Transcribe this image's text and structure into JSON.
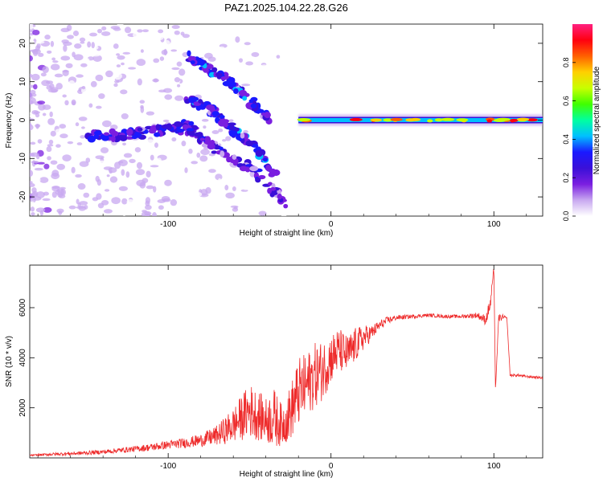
{
  "title": "PAZ1.2025.104.22.28.G26",
  "chart_data": [
    {
      "type": "heatmap",
      "xlabel": "Height of straight line (km)",
      "ylabel": "Frequency (Hz)",
      "xlim": [
        -185,
        130
      ],
      "ylim": [
        -25,
        25
      ],
      "xticks": [
        -100,
        0,
        100
      ],
      "yticks": [
        -20,
        -10,
        0,
        10,
        20
      ],
      "colorbar": {
        "label": "Normalized spectral amplitude",
        "range": [
          0,
          1
        ],
        "ticks": [
          "0.0",
          "0.2",
          "0.4",
          "0.6",
          "0.8"
        ],
        "tick_values": [
          0,
          0.2,
          0.4,
          0.6,
          0.8
        ],
        "colormap": [
          "#ffffff",
          "#c8a8f0",
          "#7a1ee0",
          "#3a10d8",
          "#1a1aff",
          "#00c0ff",
          "#00ffa0",
          "#40ff00",
          "#c8ff00",
          "#ffd000",
          "#ff6000",
          "#ff0010",
          "#ff2080"
        ]
      },
      "features": [
        {
          "name": "main-line",
          "x_start": -20,
          "x_end": 130,
          "freq": 0,
          "amplitude": 0.45
        },
        {
          "name": "upper-branch",
          "points": [
            [
              -88,
              17
            ],
            [
              -75,
              13
            ],
            [
              -62,
              10
            ],
            [
              -50,
              5
            ],
            [
              -38,
              0
            ]
          ],
          "amplitude": 0.3
        },
        {
          "name": "mid-branch",
          "points": [
            [
              -88,
              6
            ],
            [
              -75,
              3
            ],
            [
              -62,
              -2
            ],
            [
              -48,
              -6
            ],
            [
              -35,
              -14
            ]
          ],
          "amplitude": 0.3
        },
        {
          "name": "lower-branch",
          "points": [
            [
              -90,
              -1
            ],
            [
              -78,
              -5
            ],
            [
              -65,
              -9
            ],
            [
              -52,
              -12
            ],
            [
              -40,
              -16
            ],
            [
              -28,
              -22
            ]
          ],
          "amplitude": 0.25
        },
        {
          "name": "central-band",
          "points": [
            [
              -150,
              -4
            ],
            [
              -130,
              -4
            ],
            [
              -110,
              -3
            ],
            [
              -95,
              -2
            ],
            [
              -80,
              -3
            ]
          ],
          "amplitude": 0.28
        }
      ]
    },
    {
      "type": "line",
      "xlabel": "Height of straight line (km)",
      "ylabel": "SNR (10 * v/v)",
      "xlim": [
        -185,
        130
      ],
      "ylim": [
        0,
        7700
      ],
      "xticks": [
        -100,
        0,
        100
      ],
      "yticks": [
        2000,
        4000,
        6000
      ],
      "color": "#ee2a2a",
      "series": [
        {
          "x": [
            -185,
            -170,
            -160,
            -150,
            -140,
            -130,
            -120,
            -110,
            -100,
            -90,
            -80,
            -70,
            -60,
            -55,
            -50,
            -45,
            -40,
            -35,
            -30,
            -25,
            -20,
            -15,
            -10,
            -5,
            0,
            5,
            10,
            15,
            20,
            25,
            30,
            35,
            40,
            50,
            60,
            70,
            80,
            90,
            95,
            98,
            100,
            101,
            103,
            106,
            108,
            110,
            115,
            120,
            130
          ],
          "y": [
            100,
            150,
            170,
            200,
            240,
            300,
            360,
            430,
            520,
            600,
            700,
            900,
            1300,
            1600,
            1900,
            1700,
            1500,
            1600,
            1300,
            1800,
            2600,
            2900,
            3300,
            3500,
            4000,
            4300,
            4100,
            4500,
            4800,
            5000,
            5300,
            5500,
            5600,
            5650,
            5700,
            5650,
            5650,
            5700,
            5500,
            6200,
            7650,
            2700,
            5600,
            5600,
            5600,
            3300,
            3300,
            3250,
            3200
          ],
          "noise": [
            30,
            60,
            70,
            80,
            90,
            100,
            120,
            150,
            170,
            200,
            250,
            400,
            700,
            900,
            1100,
            1000,
            900,
            1200,
            800,
            1100,
            1400,
            1300,
            1300,
            1200,
            1000,
            900,
            800,
            700,
            500,
            300,
            200,
            150,
            100,
            80,
            70,
            70,
            70,
            120,
            200,
            300,
            0,
            0,
            150,
            120,
            0,
            60,
            50,
            50,
            50
          ]
        }
      ]
    }
  ]
}
